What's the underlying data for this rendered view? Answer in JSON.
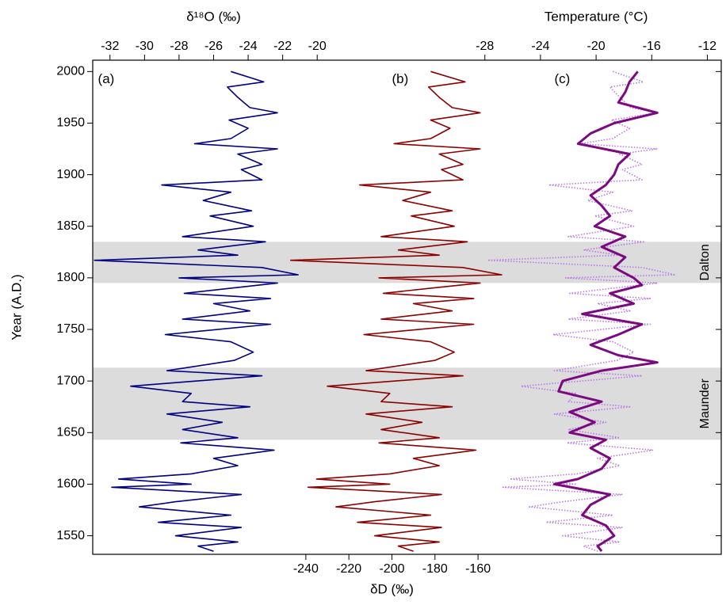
{
  "chart_data": {
    "type": "line",
    "orientation": "vertical-profile",
    "y_label": "Year (A.D.)",
    "ylim": [
      1532,
      2011
    ],
    "yticks": [
      1550,
      1600,
      1650,
      1700,
      1750,
      1800,
      1850,
      1900,
      1950,
      2000
    ],
    "axes": {
      "d18o": {
        "label": "δ¹⁸O (‰)",
        "position": "top",
        "xlim": [
          -33,
          3.4
        ],
        "xticks": [
          -32,
          -30,
          -28,
          -26,
          -24,
          -22,
          -20
        ]
      },
      "temp": {
        "label": "Temperature (°C)",
        "position": "top",
        "xlim": [
          -56.2,
          -11
        ],
        "xticks": [
          -28,
          -24,
          -20,
          -16,
          -12
        ]
      },
      "dD": {
        "label": "δD (‰)",
        "position": "bottom",
        "xlim": [
          -339,
          -47
        ],
        "xticks": [
          -240,
          -220,
          -200,
          -180,
          -160
        ]
      }
    },
    "panel_labels": [
      {
        "text": "(a)",
        "axis": "d18o",
        "at": -32.7
      },
      {
        "text": "(b)",
        "axis": "dD",
        "at": -200
      },
      {
        "text": "(c)",
        "axis": "temp",
        "at": -23
      }
    ],
    "bands": [
      {
        "label": "Dalton",
        "range": [
          1795,
          1835
        ]
      },
      {
        "label": "Maunder",
        "range": [
          1643,
          1713
        ]
      }
    ],
    "band_color": "#dcdcdc",
    "series": [
      {
        "axis": "d18o",
        "color": "#000080",
        "style": "solid",
        "y": [
          2000,
          1990,
          1985,
          1975,
          1965,
          1960,
          1953,
          1945,
          1935,
          1930,
          1925,
          1920,
          1910,
          1905,
          1895,
          1890,
          1883,
          1875,
          1865,
          1860,
          1850,
          1840,
          1835,
          1827,
          1822,
          1817,
          1810,
          1803,
          1800,
          1795,
          1790,
          1785,
          1780,
          1775,
          1768,
          1760,
          1755,
          1745,
          1738,
          1728,
          1720,
          1710,
          1705,
          1695,
          1688,
          1680,
          1675,
          1668,
          1660,
          1653,
          1645,
          1640,
          1633,
          1625,
          1618,
          1610,
          1605,
          1600,
          1597,
          1590,
          1583,
          1578,
          1570,
          1563,
          1558,
          1550,
          1544,
          1540,
          1535
        ],
        "values": [
          -25.0,
          -23.1,
          -25.2,
          -24.6,
          -23.9,
          -22.3,
          -25.1,
          -24.0,
          -25.0,
          -27.1,
          -22.3,
          -24.6,
          -23.2,
          -24.4,
          -23.2,
          -29.0,
          -25.0,
          -26.6,
          -23.8,
          -26.2,
          -23.7,
          -27.8,
          -23.0,
          -26.9,
          -24.6,
          -32.9,
          -23.2,
          -21.1,
          -28.0,
          -22.3,
          -25.0,
          -27.7,
          -22.7,
          -26.0,
          -23.9,
          -27.8,
          -22.7,
          -28.8,
          -25.0,
          -23.7,
          -24.8,
          -28.7,
          -23.2,
          -30.8,
          -27.3,
          -27.8,
          -23.9,
          -28.7,
          -25.5,
          -27.8,
          -24.6,
          -27.9,
          -22.5,
          -26.0,
          -24.6,
          -27.3,
          -31.5,
          -27.3,
          -31.9,
          -24.4,
          -28.2,
          -30.3,
          -25.0,
          -29.2,
          -24.4,
          -28.2,
          -24.6,
          -26.9,
          -26.0
        ]
      },
      {
        "axis": "dD",
        "color": "#8b0000",
        "style": "solid",
        "y": [
          2000,
          1990,
          1985,
          1975,
          1965,
          1960,
          1953,
          1945,
          1935,
          1930,
          1925,
          1920,
          1910,
          1905,
          1895,
          1890,
          1883,
          1875,
          1865,
          1860,
          1850,
          1840,
          1835,
          1827,
          1822,
          1817,
          1810,
          1803,
          1800,
          1795,
          1790,
          1785,
          1780,
          1775,
          1768,
          1760,
          1755,
          1745,
          1738,
          1728,
          1720,
          1710,
          1705,
          1695,
          1688,
          1680,
          1675,
          1668,
          1660,
          1653,
          1645,
          1640,
          1633,
          1625,
          1618,
          1610,
          1605,
          1600,
          1597,
          1590,
          1583,
          1578,
          1570,
          1563,
          1558,
          1550,
          1544,
          1540,
          1535
        ],
        "values": [
          -182,
          -166,
          -183,
          -178,
          -172,
          -159,
          -182,
          -173,
          -182,
          -199,
          -159,
          -178,
          -167,
          -177,
          -167,
          -215,
          -182,
          -195,
          -172,
          -191,
          -171,
          -205,
          -165,
          -197,
          -178,
          -247,
          -167,
          -149,
          -206,
          -159,
          -182,
          -204,
          -162,
          -190,
          -172,
          -205,
          -162,
          -213,
          -182,
          -171,
          -180,
          -212,
          -167,
          -230,
          -201,
          -205,
          -172,
          -212,
          -186,
          -205,
          -178,
          -206,
          -161,
          -190,
          -178,
          -201,
          -235,
          -201,
          -239,
          -177,
          -208,
          -226,
          -182,
          -216,
          -177,
          -208,
          -178,
          -197,
          -190
        ]
      },
      {
        "axis": "temp",
        "color": "#b77ae8",
        "style": "dotted",
        "y": [
          2000,
          1990,
          1985,
          1975,
          1965,
          1960,
          1953,
          1945,
          1935,
          1930,
          1925,
          1920,
          1910,
          1905,
          1895,
          1890,
          1883,
          1875,
          1865,
          1860,
          1850,
          1840,
          1835,
          1827,
          1822,
          1817,
          1810,
          1803,
          1800,
          1795,
          1790,
          1785,
          1780,
          1775,
          1768,
          1760,
          1755,
          1745,
          1738,
          1728,
          1720,
          1710,
          1705,
          1695,
          1688,
          1680,
          1675,
          1668,
          1660,
          1653,
          1645,
          1640,
          1633,
          1625,
          1618,
          1610,
          1605,
          1600,
          1597,
          1590,
          1583,
          1578,
          1570,
          1563,
          1558,
          1550,
          1544,
          1540,
          1535
        ],
        "values": [
          -18.8,
          -16.6,
          -19.0,
          -18.3,
          -17.5,
          -15.6,
          -18.9,
          -17.6,
          -18.8,
          -21.2,
          -15.6,
          -18.3,
          -16.7,
          -18.1,
          -16.7,
          -23.4,
          -18.8,
          -20.6,
          -17.4,
          -20.1,
          -17.3,
          -22.0,
          -16.5,
          -20.9,
          -18.3,
          -27.8,
          -16.7,
          -14.3,
          -22.2,
          -15.6,
          -18.8,
          -21.9,
          -16.1,
          -19.9,
          -17.5,
          -22.0,
          -16.1,
          -23.1,
          -18.8,
          -17.3,
          -18.5,
          -23.0,
          -16.7,
          -25.4,
          -21.4,
          -22.0,
          -17.5,
          -23.0,
          -19.3,
          -22.0,
          -18.3,
          -22.1,
          -15.9,
          -19.9,
          -18.3,
          -21.4,
          -26.2,
          -21.4,
          -26.7,
          -18.1,
          -22.4,
          -24.8,
          -18.8,
          -23.6,
          -18.1,
          -22.4,
          -18.3,
          -20.9,
          -19.9
        ]
      },
      {
        "axis": "temp",
        "color": "#7b0a80",
        "style": "thick",
        "y": [
          2000,
          1990,
          1980,
          1970,
          1960,
          1950,
          1940,
          1930,
          1920,
          1910,
          1900,
          1890,
          1880,
          1870,
          1860,
          1850,
          1840,
          1830,
          1820,
          1810,
          1800,
          1793,
          1785,
          1775,
          1765,
          1755,
          1745,
          1735,
          1725,
          1718,
          1710,
          1700,
          1690,
          1680,
          1670,
          1660,
          1650,
          1643,
          1635,
          1625,
          1615,
          1605,
          1600,
          1590,
          1580,
          1570,
          1560,
          1550,
          1540,
          1535
        ],
        "values": [
          -17.0,
          -17.6,
          -17.9,
          -18.4,
          -15.6,
          -18.7,
          -20.4,
          -21.3,
          -17.6,
          -18.4,
          -18.7,
          -19.3,
          -20.4,
          -19.6,
          -19.0,
          -20.1,
          -17.9,
          -19.6,
          -17.9,
          -18.7,
          -17.3,
          -16.7,
          -19.0,
          -17.3,
          -21.0,
          -16.7,
          -18.4,
          -20.4,
          -18.4,
          -15.6,
          -19.6,
          -22.4,
          -22.7,
          -19.6,
          -21.9,
          -20.1,
          -21.9,
          -19.3,
          -20.4,
          -19.0,
          -19.6,
          -21.3,
          -23.0,
          -19.0,
          -20.4,
          -21.0,
          -19.3,
          -18.7,
          -19.9,
          -19.6
        ]
      }
    ]
  }
}
